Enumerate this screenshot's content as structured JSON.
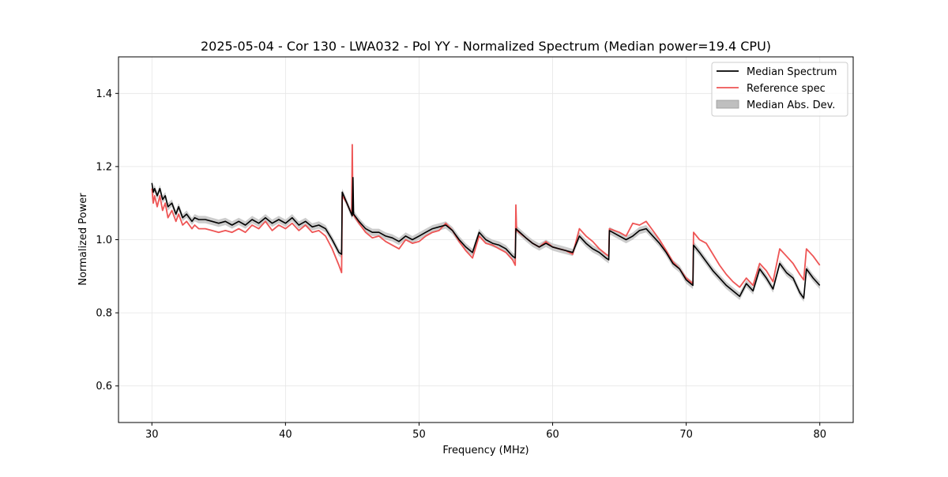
{
  "chart_data": {
    "type": "line",
    "title": "2025-05-04 - Cor 130 - LWA032 - Pol YY - Normalized Spectrum (Median power=19.4 CPU)",
    "xlabel": "Frequency (MHz)",
    "ylabel": "Normalized Power",
    "xlim": [
      27.5,
      82.5
    ],
    "ylim": [
      0.5,
      1.5
    ],
    "xticks": [
      30,
      40,
      50,
      60,
      70,
      80
    ],
    "yticks": [
      0.6,
      0.8,
      1.0,
      1.2,
      1.4
    ],
    "xtick_labels": [
      "30",
      "40",
      "50",
      "60",
      "70",
      "80"
    ],
    "ytick_labels": [
      "0.6",
      "0.8",
      "1.0",
      "1.2",
      "1.4"
    ],
    "grid": true,
    "legend_position": "top-right",
    "colors": {
      "median": "#000000",
      "reference": "#ee5555",
      "mad_fill": "#bfbfbf",
      "overlap": "#8b0000"
    },
    "legend": [
      {
        "label": "Median Spectrum",
        "kind": "line",
        "color": "#000000"
      },
      {
        "label": "Reference spec",
        "kind": "line",
        "color": "#ee5555"
      },
      {
        "label": "Median Abs. Dev.",
        "kind": "patch",
        "color": "#bfbfbf"
      }
    ],
    "series": [
      {
        "name": "Median Spectrum",
        "x": [
          30.0,
          30.1,
          30.2,
          30.4,
          30.6,
          30.8,
          31.0,
          31.2,
          31.5,
          31.8,
          32.0,
          32.3,
          32.6,
          33.0,
          33.2,
          33.5,
          34.0,
          34.5,
          35.0,
          35.5,
          36.0,
          36.5,
          37.0,
          37.5,
          38.0,
          38.5,
          39.0,
          39.5,
          40.0,
          40.5,
          41.0,
          41.5,
          42.0,
          42.5,
          43.0,
          43.5,
          44.0,
          44.2,
          44.25,
          44.6,
          45.0,
          45.05,
          45.1,
          45.5,
          46.0,
          46.5,
          47.0,
          47.5,
          48.0,
          48.5,
          49.0,
          49.5,
          50.0,
          50.5,
          51.0,
          51.5,
          52.0,
          52.5,
          53.0,
          53.5,
          54.0,
          54.5,
          55.0,
          55.5,
          56.0,
          56.5,
          57.0,
          57.2,
          57.25,
          58.0,
          58.5,
          59.0,
          59.5,
          60.0,
          60.5,
          61.0,
          61.5,
          62.0,
          62.5,
          63.0,
          63.5,
          64.0,
          64.2,
          64.25,
          65.0,
          65.5,
          66.0,
          66.5,
          67.0,
          67.5,
          68.0,
          68.5,
          69.0,
          69.5,
          70.0,
          70.5,
          70.55,
          71.0,
          71.5,
          72.0,
          72.5,
          73.0,
          73.5,
          74.0,
          74.5,
          75.0,
          75.5,
          76.0,
          76.5,
          77.0,
          77.5,
          78.0,
          78.5,
          78.8,
          79.0,
          79.5,
          80.0
        ],
        "y": [
          1.155,
          1.13,
          1.14,
          1.12,
          1.14,
          1.11,
          1.12,
          1.09,
          1.1,
          1.07,
          1.09,
          1.06,
          1.07,
          1.05,
          1.06,
          1.055,
          1.055,
          1.05,
          1.045,
          1.05,
          1.04,
          1.05,
          1.04,
          1.055,
          1.045,
          1.06,
          1.045,
          1.055,
          1.045,
          1.06,
          1.04,
          1.05,
          1.035,
          1.04,
          1.03,
          1.0,
          0.965,
          0.96,
          1.13,
          1.1,
          1.065,
          1.17,
          1.07,
          1.05,
          1.03,
          1.02,
          1.02,
          1.01,
          1.005,
          0.995,
          1.01,
          1.0,
          1.01,
          1.02,
          1.03,
          1.035,
          1.04,
          1.025,
          1.0,
          0.98,
          0.965,
          1.02,
          1.0,
          0.99,
          0.985,
          0.975,
          0.955,
          0.95,
          1.03,
          1.005,
          0.99,
          0.98,
          0.99,
          0.98,
          0.975,
          0.97,
          0.965,
          1.01,
          0.99,
          0.975,
          0.965,
          0.95,
          0.945,
          1.025,
          1.01,
          1.0,
          1.01,
          1.025,
          1.03,
          1.01,
          0.99,
          0.965,
          0.935,
          0.92,
          0.89,
          0.875,
          0.985,
          0.965,
          0.94,
          0.915,
          0.895,
          0.875,
          0.86,
          0.845,
          0.88,
          0.86,
          0.92,
          0.895,
          0.865,
          0.935,
          0.91,
          0.895,
          0.855,
          0.84,
          0.92,
          0.895,
          0.875
        ]
      },
      {
        "name": "Reference spec",
        "x": [
          30.0,
          30.1,
          30.2,
          30.4,
          30.6,
          30.8,
          31.0,
          31.2,
          31.5,
          31.8,
          32.0,
          32.3,
          32.6,
          33.0,
          33.2,
          33.5,
          34.0,
          34.5,
          35.0,
          35.5,
          36.0,
          36.5,
          37.0,
          37.5,
          38.0,
          38.5,
          39.0,
          39.5,
          40.0,
          40.5,
          41.0,
          41.5,
          42.0,
          42.5,
          43.0,
          43.5,
          44.0,
          44.2,
          44.25,
          44.6,
          44.95,
          45.0,
          45.05,
          45.5,
          46.0,
          46.5,
          47.0,
          47.5,
          48.0,
          48.5,
          49.0,
          49.5,
          50.0,
          50.5,
          51.0,
          51.5,
          52.0,
          52.5,
          53.0,
          53.5,
          54.0,
          54.5,
          55.0,
          55.5,
          56.0,
          56.5,
          57.0,
          57.2,
          57.25,
          57.3,
          58.0,
          58.5,
          59.0,
          59.5,
          60.0,
          60.5,
          61.0,
          61.5,
          62.0,
          62.5,
          63.0,
          63.5,
          64.0,
          64.2,
          64.25,
          65.0,
          65.5,
          66.0,
          66.5,
          67.0,
          67.5,
          68.0,
          68.5,
          69.0,
          69.5,
          70.0,
          70.5,
          70.55,
          71.0,
          71.5,
          72.0,
          72.5,
          73.0,
          73.5,
          74.0,
          74.5,
          75.0,
          75.5,
          76.0,
          76.5,
          77.0,
          77.5,
          78.0,
          78.5,
          78.8,
          79.0,
          79.5,
          80.0
        ],
        "y": [
          1.14,
          1.1,
          1.12,
          1.09,
          1.12,
          1.08,
          1.1,
          1.06,
          1.08,
          1.05,
          1.07,
          1.04,
          1.05,
          1.03,
          1.04,
          1.03,
          1.03,
          1.025,
          1.02,
          1.025,
          1.02,
          1.03,
          1.02,
          1.04,
          1.03,
          1.05,
          1.025,
          1.04,
          1.03,
          1.045,
          1.025,
          1.04,
          1.02,
          1.025,
          1.01,
          0.975,
          0.93,
          0.91,
          1.12,
          1.1,
          1.07,
          1.26,
          1.07,
          1.045,
          1.02,
          1.005,
          1.01,
          0.995,
          0.985,
          0.975,
          1.0,
          0.99,
          0.995,
          1.01,
          1.02,
          1.025,
          1.045,
          1.025,
          0.995,
          0.97,
          0.95,
          1.01,
          0.99,
          0.985,
          0.975,
          0.965,
          0.945,
          0.93,
          1.095,
          1.025,
          1.005,
          0.99,
          0.98,
          0.995,
          0.98,
          0.975,
          0.97,
          0.96,
          1.03,
          1.01,
          0.995,
          0.975,
          0.96,
          0.955,
          1.03,
          1.02,
          1.01,
          1.045,
          1.04,
          1.05,
          1.025,
          1.0,
          0.97,
          0.94,
          0.92,
          0.895,
          0.88,
          1.02,
          1.0,
          0.99,
          0.96,
          0.93,
          0.905,
          0.885,
          0.87,
          0.895,
          0.875,
          0.935,
          0.915,
          0.885,
          0.975,
          0.955,
          0.935,
          0.905,
          0.89,
          0.975,
          0.955,
          0.93
        ]
      }
    ]
  }
}
